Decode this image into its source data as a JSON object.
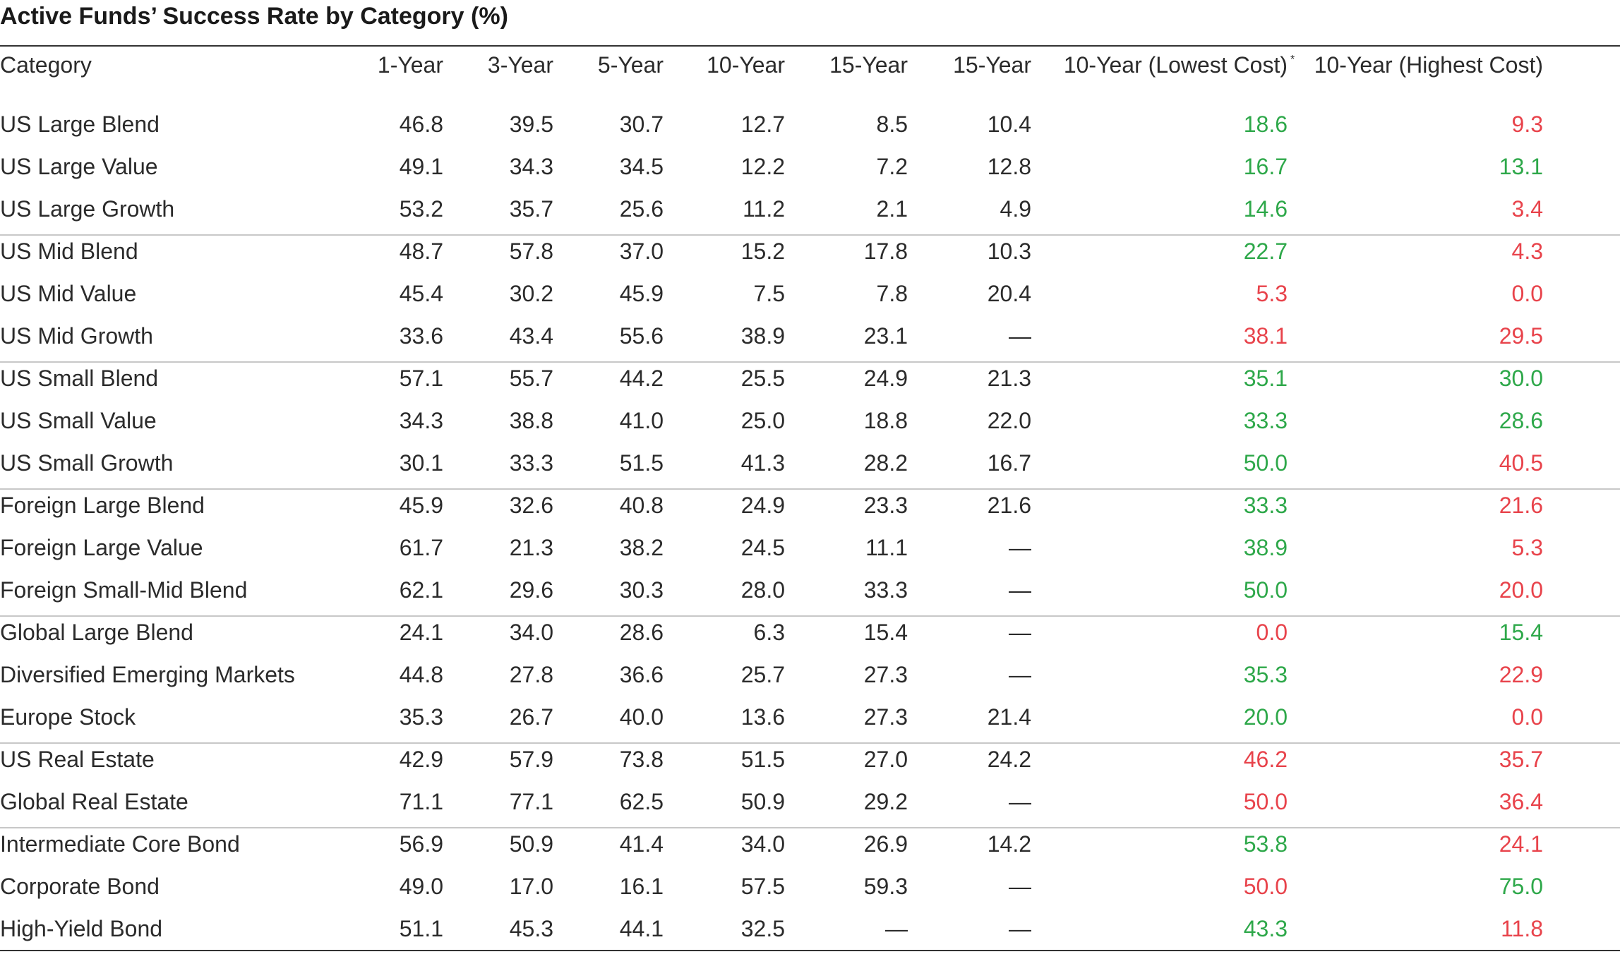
{
  "chart_data": {
    "type": "table",
    "title": "Active Funds’ Success Rate by Category (%)",
    "columns": [
      "Category",
      "1-Year",
      "3-Year",
      "5-Year",
      "10-Year",
      "15-Year",
      "15-Year",
      "10-Year (Lowest Cost)",
      "10-Year (Highest Cost)"
    ],
    "column_notes": {
      "10-Year (Lowest Cost)": "*"
    },
    "groups": [
      [
        "US Large Blend",
        "US Large Value",
        "US Large Growth"
      ],
      [
        "US Mid Blend",
        "US Mid Value",
        "US Mid Growth"
      ],
      [
        "US Small Blend",
        "US Small Value",
        "US Small Growth"
      ],
      [
        "Foreign Large Blend",
        "Foreign Large Value",
        "Foreign Small-Mid Blend"
      ],
      [
        "Global Large Blend",
        "Diversified Emerging Markets",
        "Europe Stock"
      ],
      [
        "US Real Estate",
        "Global Real Estate"
      ],
      [
        "Intermediate Core Bond",
        "Corporate Bond",
        "High-Yield Bond"
      ]
    ],
    "rows": [
      {
        "category": "US Large Blend",
        "values": [
          "46.8",
          "39.5",
          "30.7",
          "12.7",
          "8.5",
          "10.4",
          "18.6",
          "9.3"
        ],
        "cost_colors": [
          "green",
          "red"
        ]
      },
      {
        "category": "US Large Value",
        "values": [
          "49.1",
          "34.3",
          "34.5",
          "12.2",
          "7.2",
          "12.8",
          "16.7",
          "13.1"
        ],
        "cost_colors": [
          "green",
          "green"
        ]
      },
      {
        "category": "US Large Growth",
        "values": [
          "53.2",
          "35.7",
          "25.6",
          "11.2",
          "2.1",
          "4.9",
          "14.6",
          "3.4"
        ],
        "cost_colors": [
          "green",
          "red"
        ]
      },
      {
        "category": "US Mid Blend",
        "values": [
          "48.7",
          "57.8",
          "37.0",
          "15.2",
          "17.8",
          "10.3",
          "22.7",
          "4.3"
        ],
        "cost_colors": [
          "green",
          "red"
        ]
      },
      {
        "category": "US Mid Value",
        "values": [
          "45.4",
          "30.2",
          "45.9",
          "7.5",
          "7.8",
          "20.4",
          "5.3",
          "0.0"
        ],
        "cost_colors": [
          "red",
          "red"
        ]
      },
      {
        "category": "US Mid Growth",
        "values": [
          "33.6",
          "43.4",
          "55.6",
          "38.9",
          "23.1",
          "—",
          "38.1",
          "29.5"
        ],
        "cost_colors": [
          "red",
          "red"
        ]
      },
      {
        "category": "US Small Blend",
        "values": [
          "57.1",
          "55.7",
          "44.2",
          "25.5",
          "24.9",
          "21.3",
          "35.1",
          "30.0"
        ],
        "cost_colors": [
          "green",
          "green"
        ]
      },
      {
        "category": "US Small Value",
        "values": [
          "34.3",
          "38.8",
          "41.0",
          "25.0",
          "18.8",
          "22.0",
          "33.3",
          "28.6"
        ],
        "cost_colors": [
          "green",
          "green"
        ]
      },
      {
        "category": "US Small Growth",
        "values": [
          "30.1",
          "33.3",
          "51.5",
          "41.3",
          "28.2",
          "16.7",
          "50.0",
          "40.5"
        ],
        "cost_colors": [
          "green",
          "red"
        ]
      },
      {
        "category": "Foreign Large Blend",
        "values": [
          "45.9",
          "32.6",
          "40.8",
          "24.9",
          "23.3",
          "21.6",
          "33.3",
          "21.6"
        ],
        "cost_colors": [
          "green",
          "red"
        ]
      },
      {
        "category": "Foreign Large Value",
        "values": [
          "61.7",
          "21.3",
          "38.2",
          "24.5",
          "11.1",
          "—",
          "38.9",
          "5.3"
        ],
        "cost_colors": [
          "green",
          "red"
        ]
      },
      {
        "category": "Foreign Small-Mid Blend",
        "values": [
          "62.1",
          "29.6",
          "30.3",
          "28.0",
          "33.3",
          "—",
          "50.0",
          "20.0"
        ],
        "cost_colors": [
          "green",
          "red"
        ]
      },
      {
        "category": "Global Large Blend",
        "values": [
          "24.1",
          "34.0",
          "28.6",
          "6.3",
          "15.4",
          "—",
          "0.0",
          "15.4"
        ],
        "cost_colors": [
          "red",
          "green"
        ]
      },
      {
        "category": "Diversified Emerging Markets",
        "values": [
          "44.8",
          "27.8",
          "36.6",
          "25.7",
          "27.3",
          "—",
          "35.3",
          "22.9"
        ],
        "cost_colors": [
          "green",
          "red"
        ]
      },
      {
        "category": "Europe Stock",
        "values": [
          "35.3",
          "26.7",
          "40.0",
          "13.6",
          "27.3",
          "21.4",
          "20.0",
          "0.0"
        ],
        "cost_colors": [
          "green",
          "red"
        ]
      },
      {
        "category": "US Real Estate",
        "values": [
          "42.9",
          "57.9",
          "73.8",
          "51.5",
          "27.0",
          "24.2",
          "46.2",
          "35.7"
        ],
        "cost_colors": [
          "red",
          "red"
        ]
      },
      {
        "category": "Global Real Estate",
        "values": [
          "71.1",
          "77.1",
          "62.5",
          "50.9",
          "29.2",
          "—",
          "50.0",
          "36.4"
        ],
        "cost_colors": [
          "red",
          "red"
        ]
      },
      {
        "category": "Intermediate Core Bond",
        "values": [
          "56.9",
          "50.9",
          "41.4",
          "34.0",
          "26.9",
          "14.2",
          "53.8",
          "24.1"
        ],
        "cost_colors": [
          "green",
          "red"
        ]
      },
      {
        "category": "Corporate Bond",
        "values": [
          "49.0",
          "17.0",
          "16.1",
          "57.5",
          "59.3",
          "—",
          "50.0",
          "75.0"
        ],
        "cost_colors": [
          "red",
          "green"
        ]
      },
      {
        "category": "High-Yield Bond",
        "values": [
          "51.1",
          "45.3",
          "44.1",
          "32.5",
          "—",
          "—",
          "43.3",
          "11.8"
        ],
        "cost_colors": [
          "green",
          "red"
        ]
      }
    ]
  },
  "colors": {
    "green": "#2ea84a",
    "red": "#e8434b",
    "text": "#2b2b2b",
    "rule": "#333333",
    "group_rule": "#c8c8c8"
  }
}
